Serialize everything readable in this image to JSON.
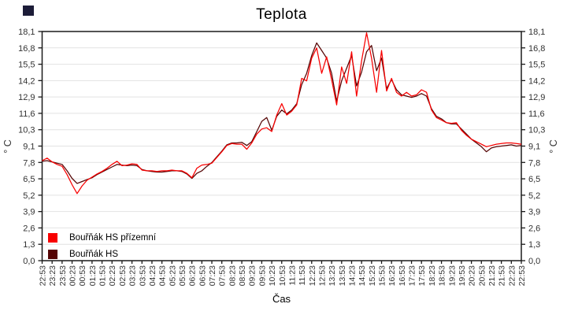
{
  "page": {
    "background": "#ffffff"
  },
  "corner_mark": {
    "color": "#1c1c38"
  },
  "chart_data": {
    "type": "line",
    "title": "Teplota",
    "xlabel": "Čas",
    "ylabel_left": "° C",
    "ylabel_right": "° C",
    "ylim": [
      0,
      18.1
    ],
    "grid": "horizontal",
    "legend_position": "inside-bottom-left",
    "frame_color": "#1a1a1a",
    "grid_color": "#e2e2e2",
    "tick_label_color": "#333333",
    "yticks": [
      "0,0",
      "1,3",
      "2,6",
      "3,9",
      "5,2",
      "6,5",
      "7,8",
      "9,1",
      "10,3",
      "11,6",
      "12,9",
      "14,2",
      "15,5",
      "16,8",
      "18,1"
    ],
    "xticks": [
      "22:53",
      "23:23",
      "23:53",
      "00:23",
      "00:53",
      "01:23",
      "01:53",
      "02:23",
      "02:53",
      "03:23",
      "03:53",
      "04:23",
      "04:53",
      "05:23",
      "05:53",
      "06:23",
      "06:53",
      "07:23",
      "07:53",
      "08:23",
      "08:53",
      "09:23",
      "09:53",
      "10:23",
      "10:53",
      "11:23",
      "11:53",
      "12:23",
      "12:53",
      "13:23",
      "13:53",
      "14:23",
      "14:53",
      "15:23",
      "15:53",
      "16:23",
      "16:53",
      "17:23",
      "17:53",
      "18:23",
      "18:53",
      "19:23",
      "19:53",
      "20:23",
      "20:53",
      "21:23",
      "21:53",
      "22:23",
      "22:53"
    ],
    "x_start": "22:53",
    "sample_interval_minutes": 15,
    "series": [
      {
        "name": "Bouřňák HS přízemní",
        "color": "#f80000",
        "values": [
          7.9,
          8.1,
          7.8,
          7.6,
          7.45,
          6.8,
          6.0,
          5.3,
          5.9,
          6.35,
          6.6,
          6.85,
          7.05,
          7.3,
          7.6,
          7.85,
          7.5,
          7.55,
          7.65,
          7.6,
          7.15,
          7.1,
          7.1,
          7.05,
          7.1,
          7.1,
          7.15,
          7.1,
          7.1,
          6.9,
          6.55,
          7.3,
          7.55,
          7.6,
          7.7,
          8.15,
          8.6,
          9.1,
          9.25,
          9.2,
          9.2,
          8.8,
          9.3,
          10.0,
          10.4,
          10.5,
          10.2,
          11.5,
          12.4,
          11.5,
          11.8,
          12.3,
          14.4,
          14.2,
          16.0,
          16.8,
          14.8,
          16.1,
          14.3,
          12.3,
          15.3,
          14.0,
          16.5,
          13.0,
          15.8,
          18.0,
          16.0,
          13.3,
          16.6,
          13.4,
          14.4,
          13.3,
          13.0,
          13.3,
          13.0,
          13.1,
          13.5,
          13.3,
          11.9,
          11.3,
          11.1,
          10.9,
          10.85,
          10.9,
          10.3,
          9.9,
          9.6,
          9.4,
          9.2,
          9.0,
          9.1,
          9.2,
          9.25,
          9.3,
          9.3,
          9.25,
          9.2
        ]
      },
      {
        "name": "Bouřňák HS",
        "color": "#550505",
        "values": [
          7.85,
          7.9,
          7.8,
          7.7,
          7.6,
          7.1,
          6.5,
          6.1,
          6.25,
          6.4,
          6.55,
          6.8,
          7.0,
          7.2,
          7.4,
          7.6,
          7.55,
          7.5,
          7.55,
          7.5,
          7.2,
          7.1,
          7.05,
          7.0,
          7.0,
          7.05,
          7.1,
          7.1,
          7.05,
          6.85,
          6.5,
          6.9,
          7.1,
          7.45,
          7.75,
          8.2,
          8.65,
          9.15,
          9.3,
          9.3,
          9.35,
          9.1,
          9.4,
          10.2,
          11.0,
          11.3,
          10.3,
          11.4,
          11.9,
          11.6,
          11.9,
          12.4,
          13.9,
          14.8,
          16.2,
          17.2,
          16.6,
          16.0,
          14.8,
          12.6,
          14.2,
          15.2,
          16.2,
          13.8,
          14.9,
          16.5,
          17.0,
          15.0,
          16.0,
          13.6,
          14.3,
          13.5,
          13.1,
          13.0,
          12.9,
          13.0,
          13.2,
          13.0,
          12.0,
          11.4,
          11.2,
          10.9,
          10.8,
          10.8,
          10.4,
          10.0,
          9.6,
          9.3,
          9.0,
          8.6,
          8.9,
          9.0,
          9.05,
          9.1,
          9.15,
          9.05,
          9.1
        ]
      }
    ]
  }
}
